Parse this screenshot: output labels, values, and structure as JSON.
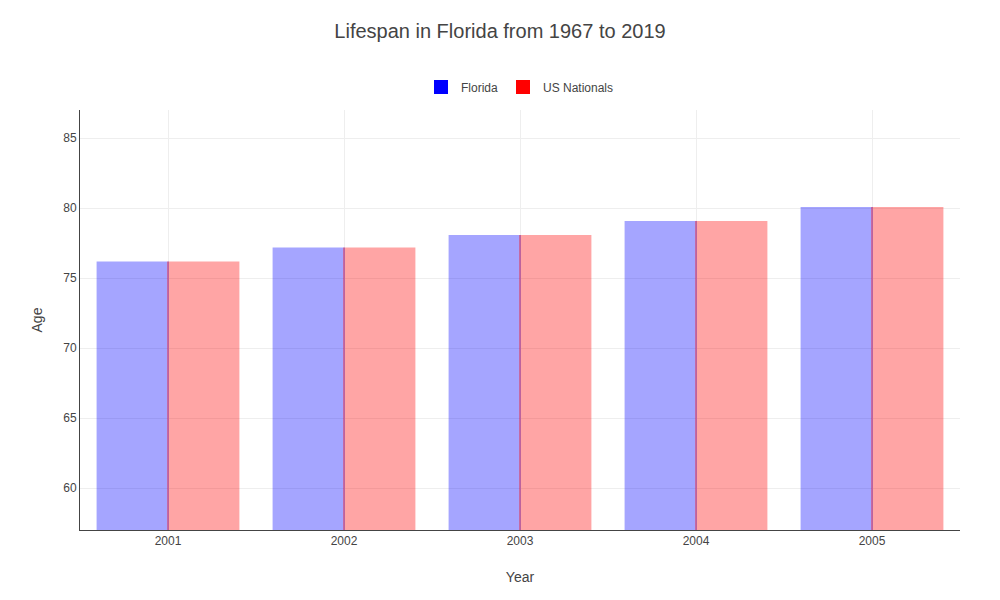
{
  "chart_data": {
    "type": "bar",
    "title": "Lifespan in Florida from 1967 to 2019",
    "x_label": "Year",
    "y_label": "Age",
    "categories": [
      "2001",
      "2002",
      "2003",
      "2004",
      "2005"
    ],
    "series": [
      {
        "name": "Florida",
        "color": "#0000ff",
        "values": [
          76.1,
          77.1,
          78.0,
          79.0,
          80.0
        ]
      },
      {
        "name": "US Nationals",
        "color": "#ff0000",
        "values": [
          76.1,
          77.1,
          78.0,
          79.0,
          80.0
        ]
      }
    ],
    "ylim": [
      57,
      87
    ],
    "yticks": [
      60,
      65,
      70,
      75,
      80,
      85
    ],
    "grid": true,
    "legend": "top"
  }
}
